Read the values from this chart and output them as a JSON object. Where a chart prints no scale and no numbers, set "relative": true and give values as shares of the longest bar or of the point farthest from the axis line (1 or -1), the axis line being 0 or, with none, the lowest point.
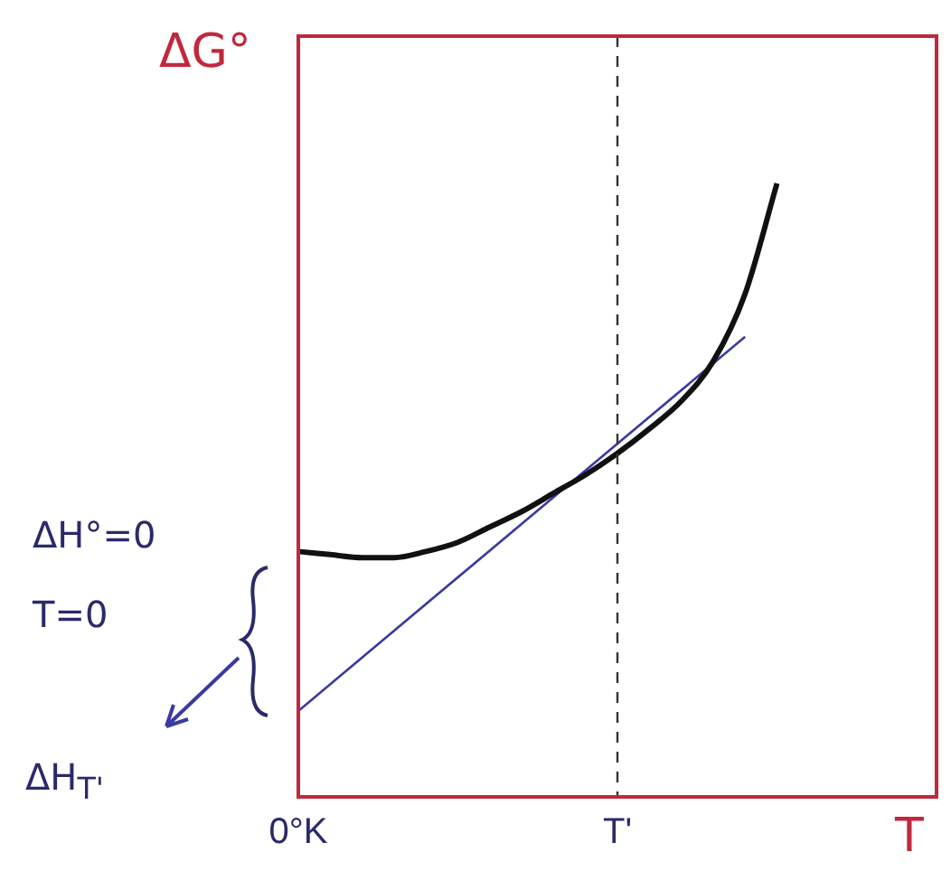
{
  "chart_data": {
    "type": "line",
    "relative": true,
    "ylabel": "ΔG°",
    "xlabel": "T",
    "grid": false,
    "legend": false,
    "marker": "none",
    "tick_labels": "x",
    "categories": [
      "0°K",
      null,
      null,
      null,
      null,
      null,
      null,
      null,
      null,
      null,
      "T'",
      null,
      null,
      null,
      null,
      null,
      null,
      null,
      null,
      null,
      null
    ],
    "series": [
      {
        "color": "#111111",
        "values": [
          0.4,
          0.395,
          0.39,
          0.39,
          0.4,
          0.415,
          0.44,
          0.465,
          0.495,
          0.525,
          0.56,
          0.6,
          0.645,
          0.71,
          0.82,
          1,
          null,
          null,
          null,
          null,
          null
        ]
      },
      {
        "color": "#3a3aa0",
        "values": [
          0.14,
          null,
          null,
          null,
          null,
          null,
          null,
          null,
          null,
          null,
          null,
          null,
          null,
          null,
          0.75,
          null,
          null,
          null,
          null,
          null,
          null
        ]
      }
    ],
    "ref_lines": [
      {
        "axis": "x",
        "value": "T'",
        "color": "#333333",
        "line_style": "dashed"
      }
    ],
    "annotations": [
      "ΔH°=0",
      "T=0",
      "ΔH$_{T'}$"
    ]
  }
}
